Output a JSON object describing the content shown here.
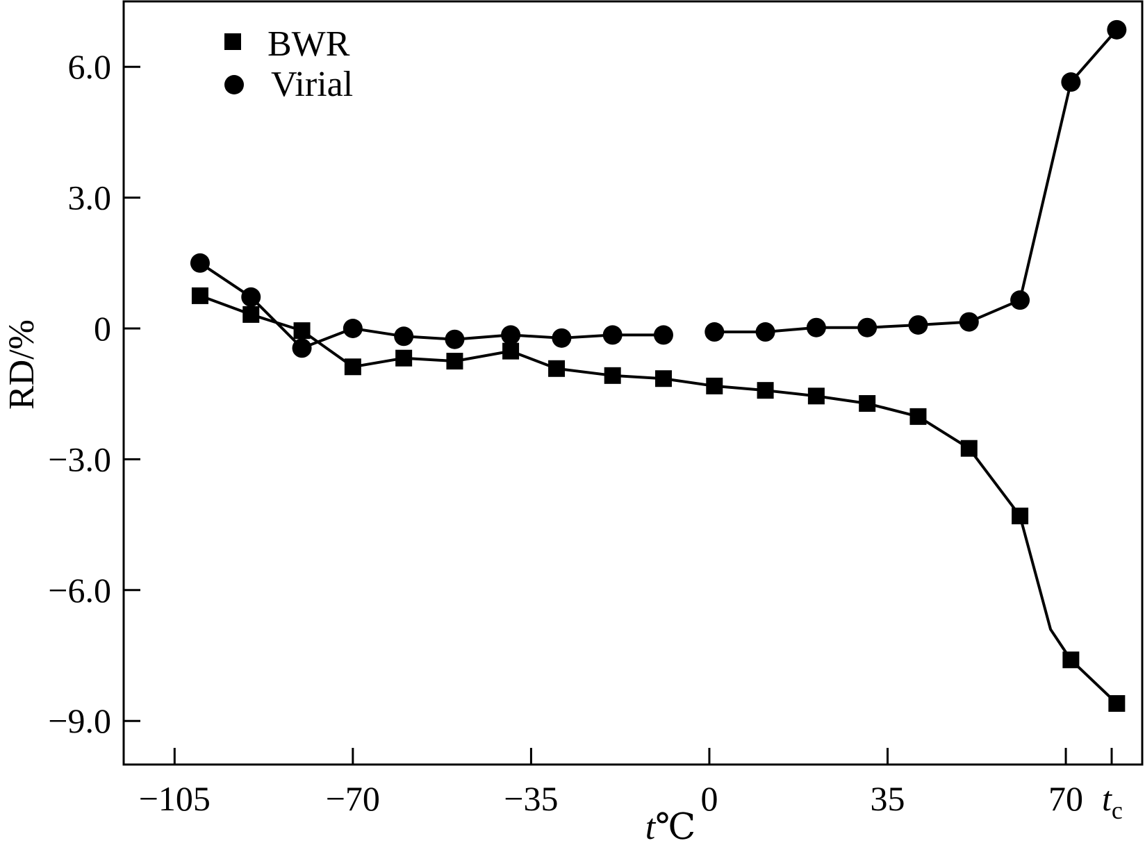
{
  "chart_data": {
    "type": "line",
    "title": "",
    "xlabel": "t",
    "xlabel_unit": "℃",
    "ylabel": "RD/%",
    "xlim": [
      -115,
      85
    ],
    "ylim": [
      -10.0,
      7.5
    ],
    "x_ticks": [
      -105,
      -70,
      -35,
      0,
      35,
      70
    ],
    "x_tick_labels": [
      "−105",
      "−70",
      "−35",
      "0",
      "35",
      "70"
    ],
    "tc_label_main": "t",
    "tc_label_sub": "c",
    "tc_x": 79,
    "y_ticks": [
      6.0,
      3.0,
      0,
      -3.0,
      -6.0,
      -9.0
    ],
    "y_tick_labels": [
      "6.0",
      "3.0",
      "0",
      "−3.0",
      "−6.0",
      "−9.0"
    ],
    "grid": false,
    "legend_position": "top-left",
    "series": [
      {
        "name": "BWR",
        "marker": "square",
        "x": [
          -100,
          -90,
          -80,
          -70,
          -60,
          -50,
          -39,
          -30,
          -19,
          -9,
          1,
          11,
          21,
          31,
          41,
          51,
          61,
          71,
          80
        ],
        "y": [
          0.75,
          0.32,
          -0.05,
          -0.88,
          -0.68,
          -0.75,
          -0.52,
          -0.92,
          -1.08,
          -1.15,
          -1.32,
          -1.42,
          -1.55,
          -1.72,
          -2.02,
          -2.75,
          -4.3,
          -7.6,
          -8.6
        ],
        "line_x": [
          -100,
          -90,
          -80,
          -70,
          -60,
          -50,
          -39,
          -30,
          -19,
          -9,
          1,
          11,
          21,
          31,
          41,
          51,
          61,
          67,
          71,
          80
        ],
        "line_y": [
          0.75,
          0.32,
          -0.05,
          -0.88,
          -0.68,
          -0.75,
          -0.52,
          -0.92,
          -1.08,
          -1.15,
          -1.32,
          -1.42,
          -1.55,
          -1.72,
          -2.02,
          -2.75,
          -4.3,
          -6.9,
          -7.6,
          -8.6
        ]
      },
      {
        "name": "Virial",
        "marker": "circle",
        "x": [
          -100,
          -90,
          -80,
          -70,
          -60,
          -50,
          -39,
          -29,
          -19,
          -9,
          1,
          11,
          21,
          31,
          41,
          51,
          61,
          71,
          80
        ],
        "y": [
          1.5,
          0.72,
          -0.45,
          0.0,
          -0.18,
          -0.25,
          -0.15,
          -0.22,
          -0.15,
          -0.15,
          -0.08,
          -0.08,
          0.02,
          0.02,
          0.08,
          0.15,
          0.65,
          5.65,
          6.85
        ],
        "segments": [
          [
            0,
            9
          ],
          [
            10,
            18
          ]
        ]
      }
    ]
  }
}
